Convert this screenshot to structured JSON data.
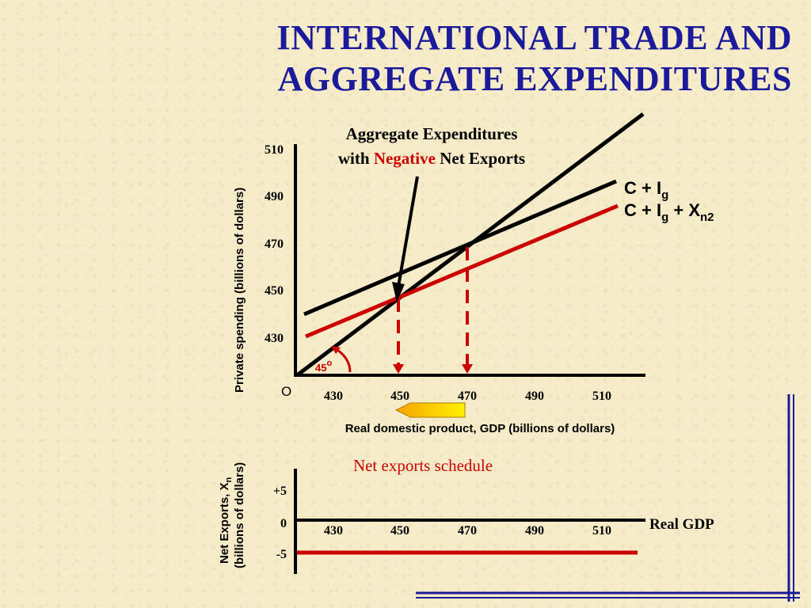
{
  "title": {
    "line1": "INTERNATIONAL TRADE AND",
    "line2": "AGGREGATE EXPENDITURES"
  },
  "annotation": {
    "line1": "Aggregate Expenditures",
    "line2_prefix": "with ",
    "line2_highlight": "Negative",
    "line2_suffix": " Net Exports"
  },
  "colors": {
    "title": "#1a1a9a",
    "red_series": "#cc0000",
    "black_series": "#000000",
    "frame": "#1a1a9a",
    "arrow_fill": "#f2c200"
  },
  "top_chart": {
    "y_axis_label": "Private spending (billions of dollars)",
    "y_ticks": [
      "510",
      "490",
      "470",
      "450",
      "430"
    ],
    "origin_label": "O",
    "x_ticks": [
      "430",
      "450",
      "470",
      "490",
      "510"
    ],
    "x_axis_label": "Real domestic product, GDP (billions of dollars)",
    "angle_label": "45",
    "angle_degree": "o",
    "series_labels": {
      "ci": {
        "base": "C + I",
        "sub": "g"
      },
      "cixn": {
        "base": "C + I",
        "sub": "g",
        "plus": " + X",
        "sub2": "n2"
      }
    }
  },
  "bottom_chart": {
    "title": "Net exports schedule",
    "y_axis_label_line1": "Net Exports, X",
    "y_axis_label_sub": "n",
    "y_axis_label_line2": "(billions of dollars)",
    "y_ticks": [
      "+5",
      "0",
      "-5"
    ],
    "x_ticks": [
      "430",
      "450",
      "470",
      "490",
      "510"
    ],
    "x_axis_label": "Real GDP"
  },
  "chart_data": [
    {
      "type": "line",
      "xlabel": "Real domestic product, GDP (billions of dollars)",
      "ylabel": "Private spending (billions of dollars)",
      "xlim": [
        415,
        525
      ],
      "ylim": [
        415,
        515
      ],
      "series": [
        {
          "name": "45°",
          "x": [
            415,
            525
          ],
          "y": [
            415,
            525
          ]
        },
        {
          "name": "C + Ig",
          "x": [
            418,
            510
          ],
          "y": [
            441,
            498
          ]
        },
        {
          "name": "C + Ig + Xn2",
          "x": [
            418,
            510
          ],
          "y": [
            436,
            493
          ]
        }
      ],
      "equilibria": [
        {
          "x": 450,
          "y": 450
        },
        {
          "x": 470,
          "y": 470
        }
      ]
    },
    {
      "type": "line",
      "title": "Net exports schedule",
      "xlabel": "Real GDP",
      "ylabel": "Net Exports, Xn (billions of dollars)",
      "ylim": [
        -8,
        10
      ],
      "series": [
        {
          "name": "Xn2",
          "x": [
            415,
            525
          ],
          "y": [
            -5,
            -5
          ]
        }
      ]
    }
  ]
}
